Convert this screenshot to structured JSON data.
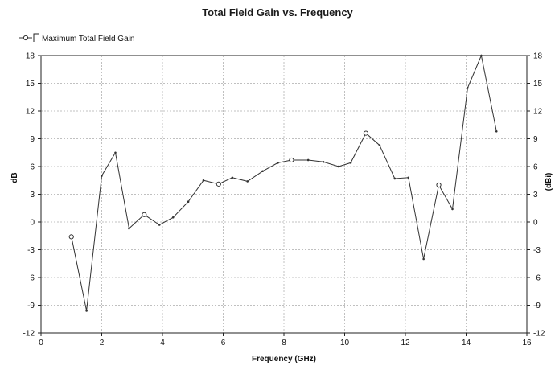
{
  "chart_data": {
    "type": "line",
    "title": "Total Field Gain vs. Frequency",
    "xlabel": "Frequency (GHz)",
    "ylabel": "dB",
    "y2label": "(dBi)",
    "xlim": [
      0,
      16
    ],
    "ylim": [
      -12,
      18
    ],
    "xticks": [
      0,
      2,
      4,
      6,
      8,
      10,
      12,
      14,
      16
    ],
    "yticks": [
      -12,
      -9,
      -6,
      -3,
      0,
      3,
      6,
      9,
      12,
      15,
      18
    ],
    "grid": true,
    "legend_position": "top-left",
    "line_color": "#333333",
    "grid_color": "#c0c0c0",
    "series": [
      {
        "name": "Maximum Total Field Gain",
        "x": [
          1.0,
          1.5,
          2.0,
          2.45,
          2.9,
          3.4,
          3.9,
          4.35,
          4.85,
          5.35,
          5.85,
          6.3,
          6.8,
          7.3,
          7.8,
          8.25,
          8.8,
          9.3,
          9.8,
          10.2,
          10.7,
          11.15,
          11.65,
          12.1,
          12.6,
          13.1,
          13.55,
          14.05,
          14.5,
          15.0
        ],
        "y": [
          -1.6,
          -9.6,
          5.0,
          7.5,
          -0.7,
          0.8,
          -0.3,
          0.5,
          2.2,
          4.5,
          4.1,
          4.8,
          4.4,
          5.5,
          6.4,
          6.7,
          6.7,
          6.5,
          6.0,
          6.4,
          9.6,
          8.3,
          4.7,
          4.8,
          -4.0,
          4.0,
          1.4,
          14.5,
          18.0,
          9.8
        ],
        "marked_points": [
          0,
          5,
          10,
          15,
          20,
          25
        ]
      }
    ]
  }
}
